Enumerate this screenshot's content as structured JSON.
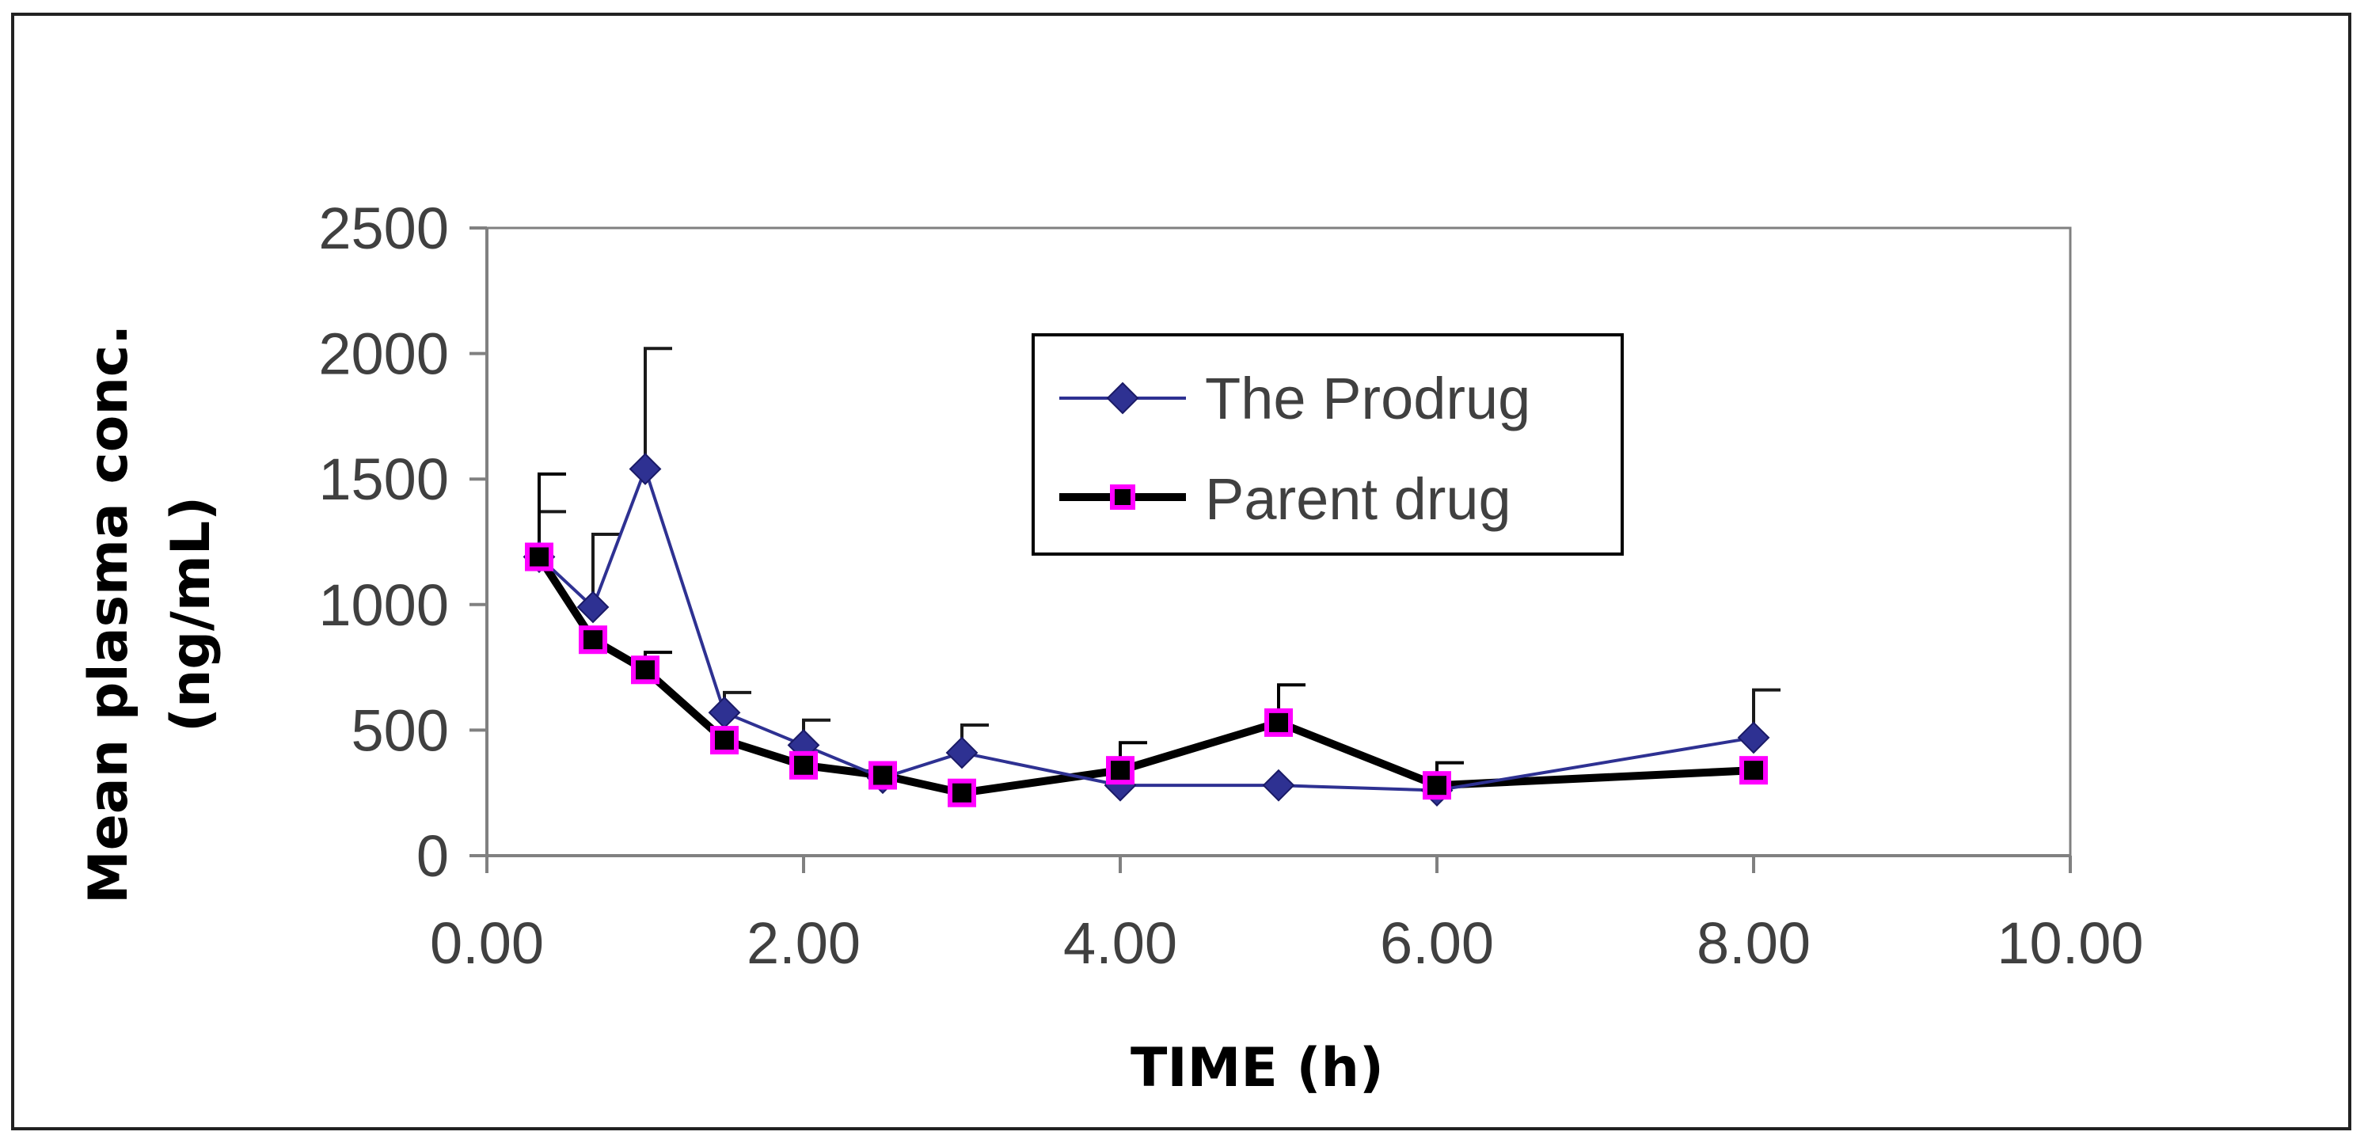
{
  "chart_data": {
    "type": "line",
    "title": "",
    "xlabel": "TIME (h)",
    "ylabel_lines": [
      "Mean plasma conc.",
      "(ng/mL)"
    ],
    "xlim": [
      0,
      10
    ],
    "ylim": [
      0,
      2500
    ],
    "x_ticks": [
      0,
      2,
      4,
      6,
      8,
      10
    ],
    "x_tick_labels": [
      "0.00",
      "2.00",
      "4.00",
      "6.00",
      "8.00",
      "10.00"
    ],
    "y_ticks": [
      0,
      500,
      1000,
      1500,
      2000,
      2500
    ],
    "y_tick_labels": [
      "0",
      "500",
      "1000",
      "1500",
      "2000",
      "2500"
    ],
    "grid": false,
    "legend_position": "upper-center",
    "series": [
      {
        "name": "The Prodrug",
        "color": "#2e3192",
        "marker": "diamond",
        "x": [
          0.33,
          0.67,
          1,
          1.5,
          2,
          2.5,
          3,
          4,
          5,
          6,
          8
        ],
        "values": [
          1190,
          990,
          1540,
          570,
          440,
          310,
          410,
          280,
          280,
          260,
          470
        ],
        "error_plus": [
          180,
          290,
          480,
          80,
          100,
          0,
          110,
          0,
          0,
          0,
          190
        ]
      },
      {
        "name": "Parent drug",
        "color": "#000000",
        "marker_face": "#ff00ff",
        "marker": "square",
        "x": [
          0.33,
          0.67,
          1,
          1.5,
          2,
          2.5,
          3,
          4,
          5,
          6,
          8
        ],
        "values": [
          1190,
          860,
          740,
          460,
          360,
          320,
          250,
          340,
          530,
          280,
          340
        ],
        "error_plus": [
          330,
          0,
          70,
          0,
          0,
          0,
          0,
          110,
          150,
          90,
          0
        ]
      }
    ]
  }
}
